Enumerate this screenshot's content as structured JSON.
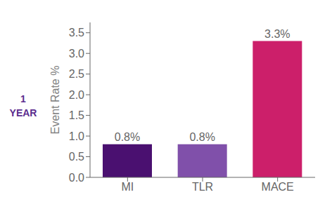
{
  "chart_data": {
    "type": "bar",
    "categories": [
      "MI",
      "TLR",
      "MACE"
    ],
    "values": [
      0.8,
      0.8,
      3.3
    ],
    "value_labels": [
      "0.8%",
      "0.8%",
      "3.3%"
    ],
    "data_labels": true,
    "colors": [
      "#4a1070",
      "#8050aa",
      "#cc1f6a"
    ],
    "ylabel": "Event Rate %",
    "ylim": [
      0,
      3.75
    ],
    "yticks": [
      {
        "value": 0,
        "label": "0.0"
      },
      0.5,
      {
        "value": 1,
        "label": "1.0"
      },
      1.5,
      {
        "value": 2,
        "label": "2.0"
      },
      2.5,
      {
        "value": 3,
        "label": "3.0"
      },
      3.5
    ],
    "grid": false,
    "annotations": [
      "1",
      "YEAR"
    ]
  }
}
